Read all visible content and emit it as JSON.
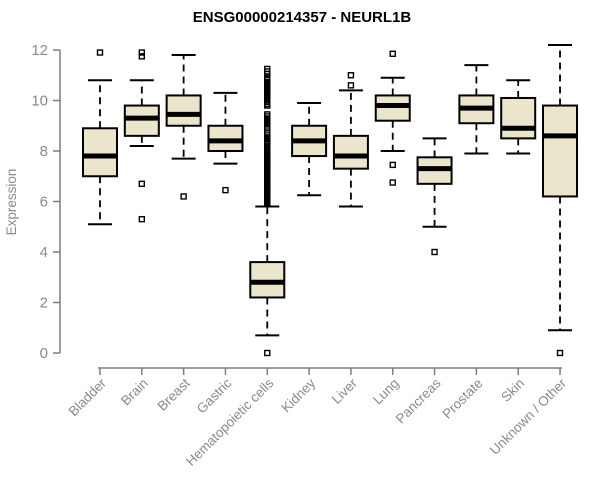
{
  "chart_data": {
    "type": "boxplot",
    "title": "ENSG00000214357 - NEURL1B",
    "ylabel": "Expression",
    "xlabel": "",
    "ylim": [
      0,
      12
    ],
    "yticks": [
      0,
      2,
      4,
      6,
      8,
      10,
      12
    ],
    "grid": "off",
    "legend": "none",
    "categories": [
      "Bladder",
      "Brain",
      "Breast",
      "Gastric",
      "Hematopoietic cells",
      "Kidney",
      "Liver",
      "Lung",
      "Pancreas",
      "Prostate",
      "Skin",
      "Unknown / Other"
    ],
    "series": [
      {
        "name": "Bladder",
        "whislo": 5.1,
        "q1": 7.0,
        "med": 7.8,
        "q3": 8.9,
        "whishi": 10.8,
        "outliers": [
          11.9
        ]
      },
      {
        "name": "Brain",
        "whislo": 8.2,
        "q1": 8.6,
        "med": 9.3,
        "q3": 9.8,
        "whishi": 10.8,
        "outliers": [
          11.9,
          11.75,
          6.7,
          5.3
        ]
      },
      {
        "name": "Breast",
        "whislo": 7.7,
        "q1": 9.0,
        "med": 9.45,
        "q3": 10.2,
        "whishi": 11.8,
        "outliers": [
          6.2
        ]
      },
      {
        "name": "Gastric",
        "whislo": 7.5,
        "q1": 8.0,
        "med": 8.4,
        "q3": 9.0,
        "whishi": 10.3,
        "outliers": [
          6.45
        ]
      },
      {
        "name": "Hematopoietic cells",
        "whislo": 0.7,
        "q1": 2.2,
        "med": 2.8,
        "q3": 3.6,
        "whishi": 5.8,
        "outliers": [
          11.25,
          11.15,
          11.05,
          10.9,
          10.82,
          10.74,
          10.66,
          10.58,
          10.5,
          10.42,
          10.34,
          10.26,
          10.18,
          10.1,
          10.02,
          9.94,
          9.86,
          9.8,
          9.45,
          9.37,
          9.29,
          9.21,
          9.13,
          9.05,
          8.97,
          8.9,
          8.7,
          8.62,
          8.54,
          8.46,
          8.38,
          8.3,
          8.2,
          8.15,
          8.1,
          8.05,
          8.0,
          7.95,
          7.9,
          7.85,
          7.8,
          7.75,
          7.7,
          7.65,
          7.6,
          7.55,
          7.5,
          7.45,
          7.4,
          7.35,
          7.3,
          7.25,
          7.2,
          7.15,
          7.1,
          7.05,
          7.0,
          6.95,
          6.9,
          6.85,
          6.8,
          6.75,
          6.7,
          6.65,
          6.6,
          6.55,
          6.5,
          6.45,
          6.4,
          6.35,
          6.3,
          6.25,
          6.2,
          6.15,
          6.1,
          6.05,
          6.0,
          5.95,
          0.0
        ]
      },
      {
        "name": "Kidney",
        "whislo": 6.25,
        "q1": 7.8,
        "med": 8.4,
        "q3": 9.0,
        "whishi": 9.9,
        "outliers": []
      },
      {
        "name": "Liver",
        "whislo": 5.8,
        "q1": 7.3,
        "med": 7.8,
        "q3": 8.6,
        "whishi": 10.4,
        "outliers": [
          11.0,
          10.6
        ]
      },
      {
        "name": "Lung",
        "whislo": 8.0,
        "q1": 9.2,
        "med": 9.8,
        "q3": 10.2,
        "whishi": 10.9,
        "outliers": [
          11.85,
          7.45,
          6.75
        ]
      },
      {
        "name": "Pancreas",
        "whislo": 5.0,
        "q1": 6.7,
        "med": 7.3,
        "q3": 7.75,
        "whishi": 8.5,
        "outliers": [
          4.0
        ]
      },
      {
        "name": "Prostate",
        "whislo": 7.9,
        "q1": 9.1,
        "med": 9.7,
        "q3": 10.2,
        "whishi": 11.4,
        "outliers": []
      },
      {
        "name": "Skin",
        "whislo": 7.9,
        "q1": 8.5,
        "med": 8.9,
        "q3": 10.1,
        "whishi": 10.8,
        "outliers": []
      },
      {
        "name": "Unknown / Other",
        "whislo": 0.9,
        "q1": 6.2,
        "med": 8.6,
        "q3": 9.8,
        "whishi": 12.2,
        "outliers": [
          0.0
        ]
      }
    ]
  },
  "colors": {
    "box_fill": "#ebe5cc",
    "box_stroke": "#000000",
    "median": "#000000",
    "whisker": "#000000",
    "axis_line": "#7e7e7e",
    "axis_text": "#8a8a8a",
    "title_text": "#000000",
    "background": "#ffffff"
  }
}
